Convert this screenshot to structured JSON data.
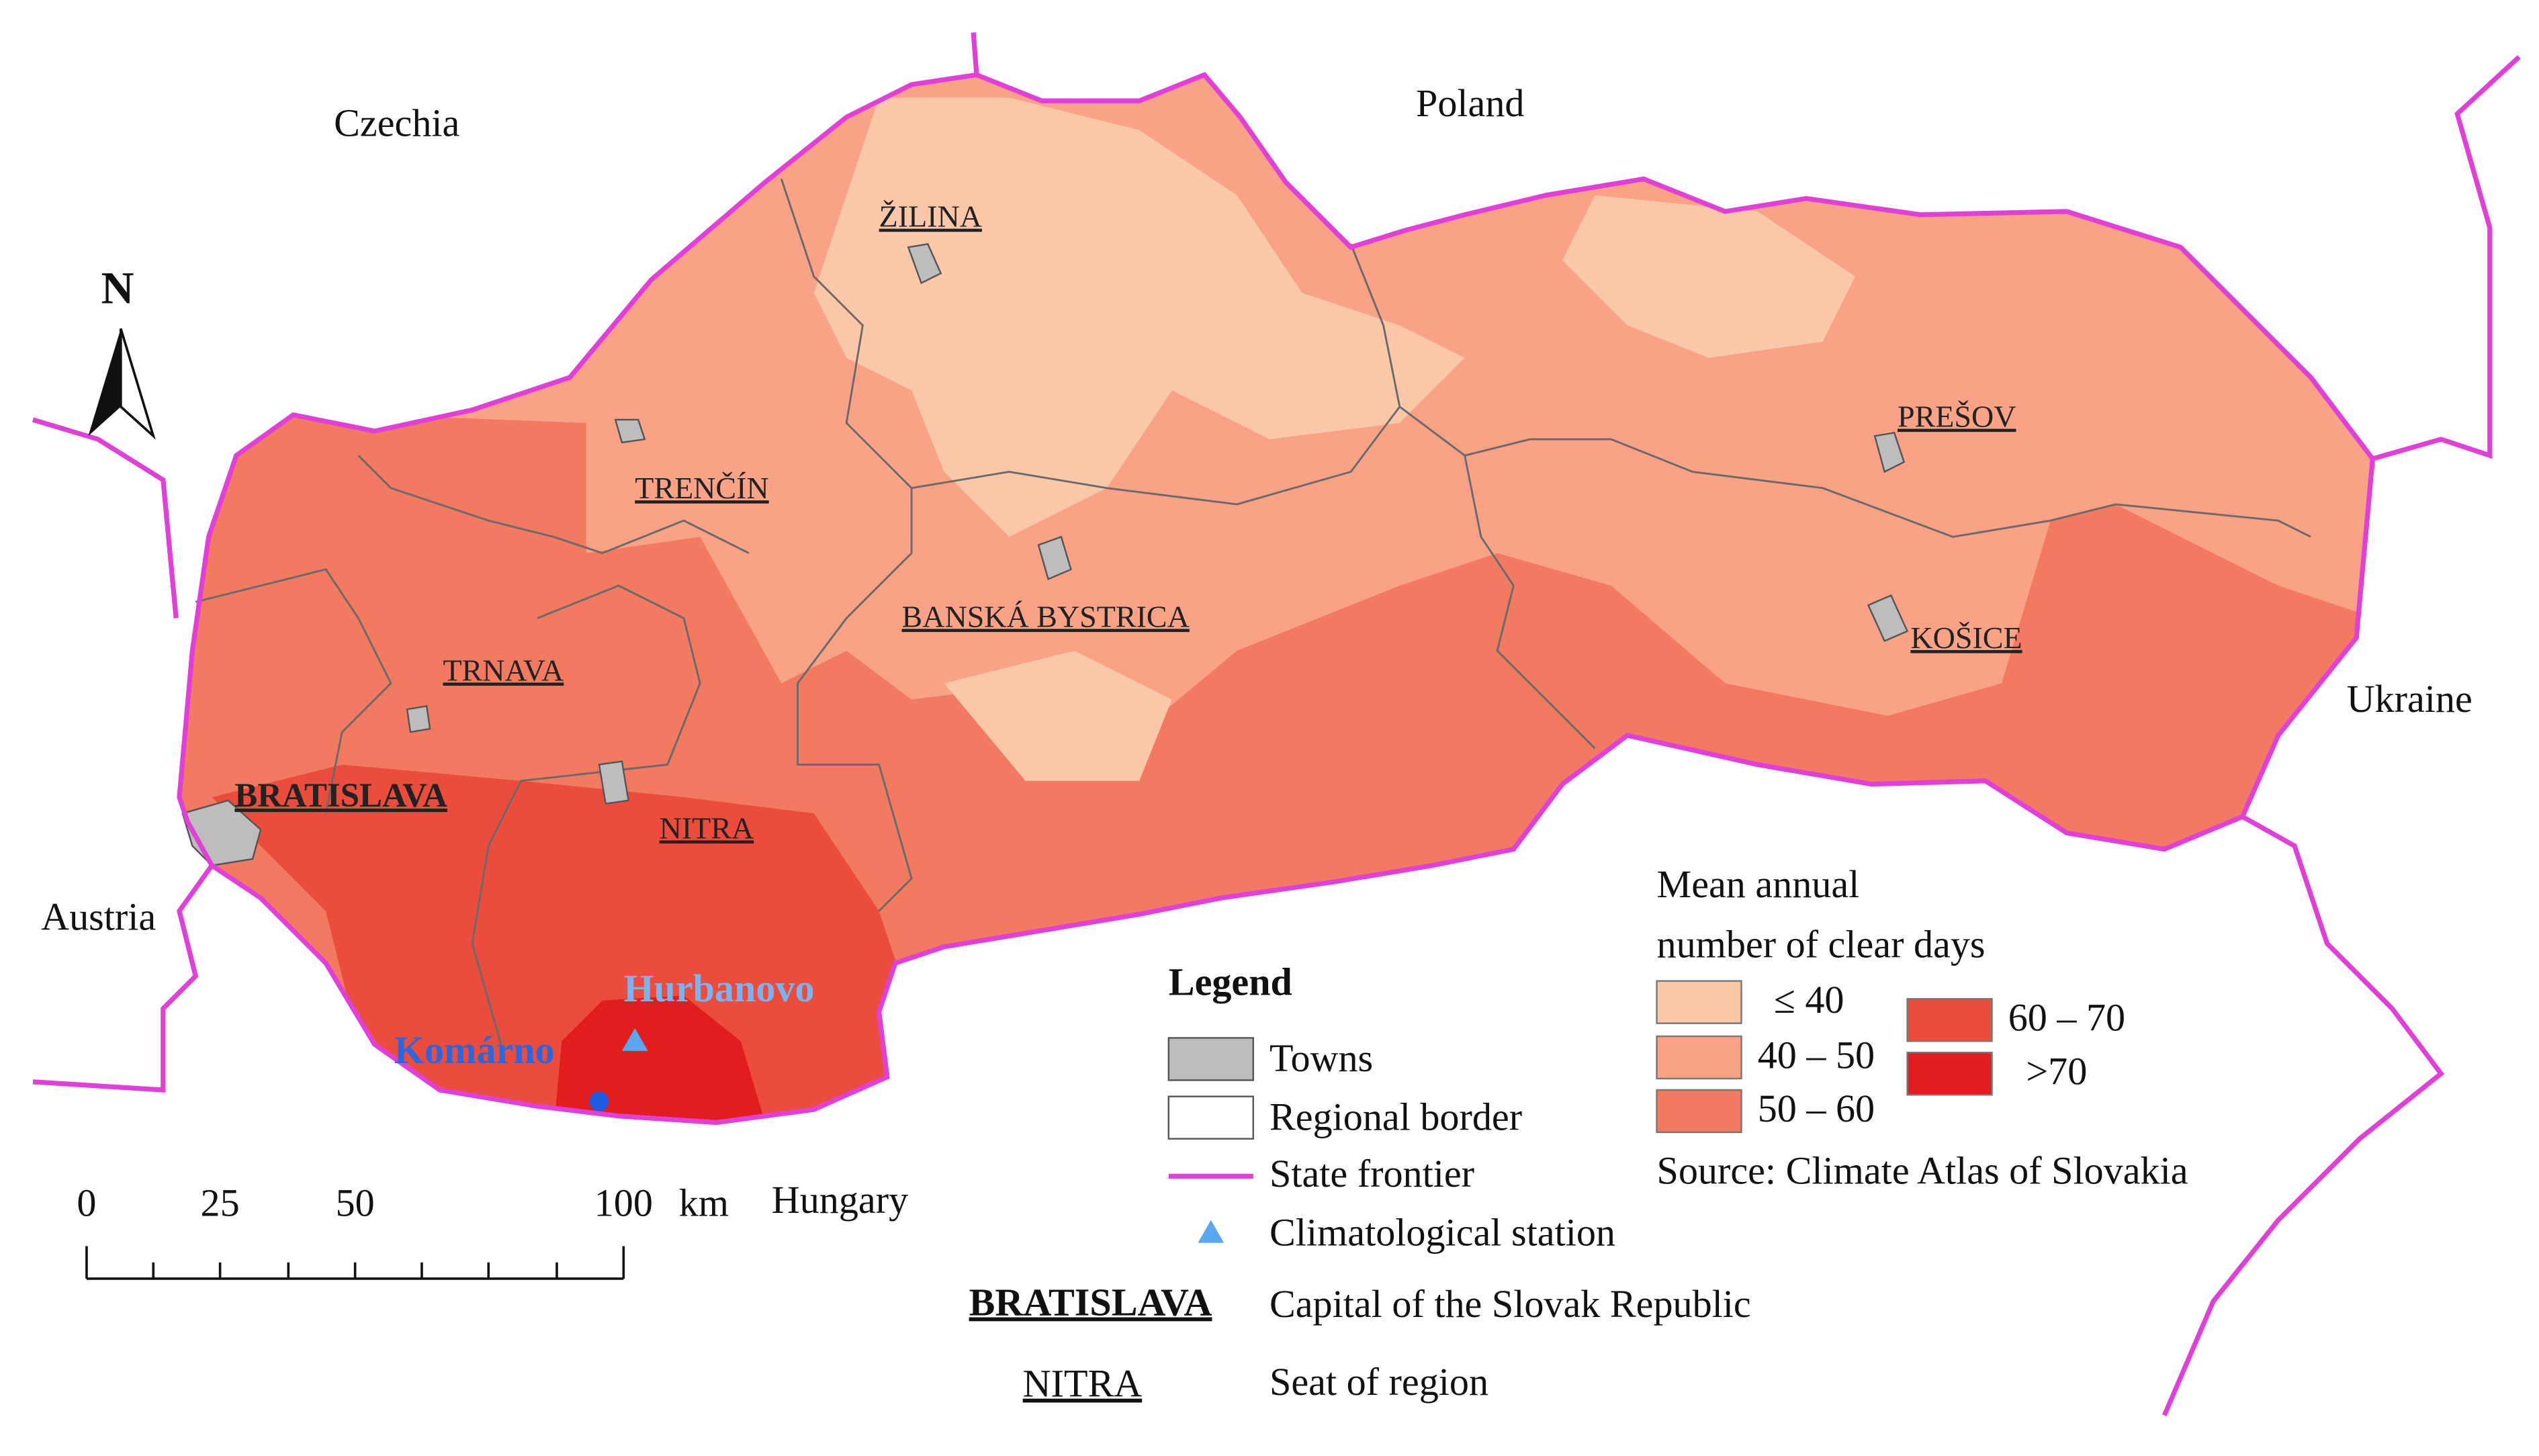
{
  "map": {
    "countries": [
      "Czechia",
      "Poland",
      "Ukraine",
      "Austria",
      "Hungary"
    ],
    "cities": [
      "ŽILINA",
      "PREŠOV",
      "TRENČÍN",
      "BANSKÁ BYSTRICA",
      "KOŠICE",
      "TRNAVA",
      "BRATISLAVA",
      "NITRA"
    ],
    "stations": [
      "Hurbanovo",
      "Komárno"
    ],
    "north": "N",
    "scale": {
      "labels": [
        "0",
        "25",
        "50",
        "100"
      ],
      "unit": "km"
    }
  },
  "legend": {
    "title": "Legend",
    "items": [
      "Towns",
      "Regional border",
      "State frontier",
      "Climatological station",
      "Capital of the Slovak Republic",
      "Seat of region"
    ],
    "examples": [
      "BRATISLAVA",
      "NITRA"
    ]
  },
  "classes": {
    "title": [
      "Mean annual",
      "number of clear days"
    ],
    "items": [
      {
        "label": "≤ 40",
        "color": "#fbc7a9"
      },
      {
        "label": "40 – 50",
        "color": "#f9a285"
      },
      {
        "label": "50 – 60",
        "color": "#f27a60"
      },
      {
        "label": "60 – 70",
        "color": "#eb4c3c"
      },
      {
        "label": ">70",
        "color": "#e21d1d"
      }
    ],
    "source": "Source: Climate Atlas of Slovakia"
  }
}
